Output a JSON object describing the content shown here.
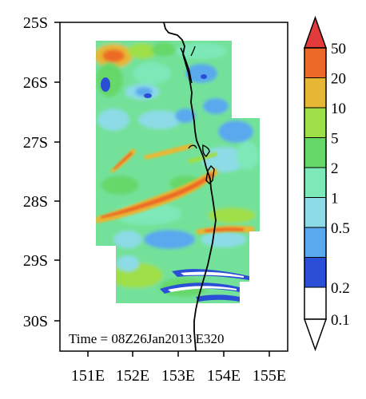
{
  "map": {
    "time_label": "Time = 08Z26Jan2013 E320",
    "lat_ticks": [
      "25S",
      "26S",
      "27S",
      "28S",
      "29S",
      "30S"
    ],
    "lon_ticks": [
      "151E",
      "152E",
      "153E",
      "154E",
      "155E"
    ]
  },
  "colorbar": {
    "labels": [
      "0.1",
      "0.2",
      "0.5",
      "1",
      "2",
      "5",
      "10",
      "20",
      "50"
    ],
    "colors": [
      "#2a4fd6",
      "#5aa8ee",
      "#8cdbe6",
      "#7de8b8",
      "#66d86a",
      "#9ede47",
      "#e6b734",
      "#ec6a27",
      "#e33b3b"
    ],
    "under_color": "#ffffff",
    "over_color": "#e33b3b"
  },
  "chart_data": {
    "type": "heatmap",
    "projection": "lat-lon",
    "xlim": [
      "151E",
      "155E"
    ],
    "ylim": [
      "30S",
      "25S"
    ],
    "colorbar_levels": [
      0.1,
      0.2,
      0.5,
      1,
      2,
      5,
      10,
      20,
      50
    ],
    "grid": false,
    "legend_placement": "right"
  }
}
